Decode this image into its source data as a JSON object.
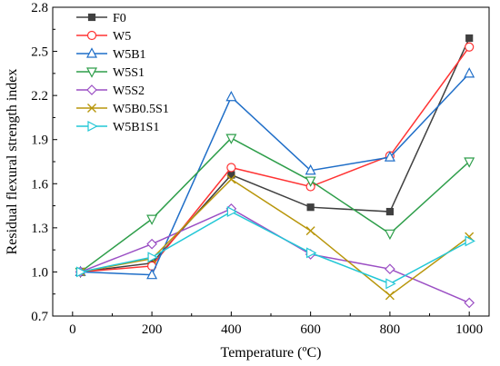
{
  "chart_data": {
    "type": "line",
    "xlabel": "Temperature (ºC)",
    "ylabel": "Residual flexural strength index",
    "xlim": [
      -50,
      1050
    ],
    "ylim": [
      0.7,
      2.8
    ],
    "x_ticks": [
      0,
      200,
      400,
      600,
      800,
      1000
    ],
    "y_ticks": [
      0.7,
      1.0,
      1.3,
      1.6,
      1.9,
      2.2,
      2.5,
      2.8
    ],
    "y_tick_labels": [
      "0.7",
      "1.0",
      "1.3",
      "1.6",
      "1.9",
      "2.2",
      "2.5",
      "2.8"
    ],
    "legend_position": "top-left",
    "x": [
      20,
      200,
      400,
      600,
      800,
      1000
    ],
    "series": [
      {
        "name": "F0",
        "color": "#404040",
        "marker": "square",
        "values": [
          1.0,
          1.06,
          1.66,
          1.44,
          1.41,
          2.59
        ]
      },
      {
        "name": "W5",
        "color": "#ff3333",
        "marker": "circle",
        "values": [
          1.0,
          1.04,
          1.71,
          1.58,
          1.79,
          2.53
        ]
      },
      {
        "name": "W5B1",
        "color": "#1f6ec8",
        "marker": "triangle-up",
        "values": [
          1.0,
          0.98,
          2.19,
          1.69,
          1.78,
          2.35
        ]
      },
      {
        "name": "W5S1",
        "color": "#2e9e4a",
        "marker": "triangle-down",
        "values": [
          1.0,
          1.36,
          1.91,
          1.62,
          1.26,
          1.75
        ]
      },
      {
        "name": "W5S2",
        "color": "#9b4fc4",
        "marker": "diamond",
        "values": [
          1.0,
          1.19,
          1.43,
          1.12,
          1.02,
          0.79
        ]
      },
      {
        "name": "W5B0.5S1",
        "color": "#b8960b",
        "marker": "x",
        "values": [
          1.0,
          1.09,
          1.63,
          1.28,
          0.84,
          1.24
        ]
      },
      {
        "name": "W5B1S1",
        "color": "#22c7d6",
        "marker": "triangle-right",
        "values": [
          1.0,
          1.1,
          1.41,
          1.13,
          0.92,
          1.21
        ]
      }
    ]
  }
}
